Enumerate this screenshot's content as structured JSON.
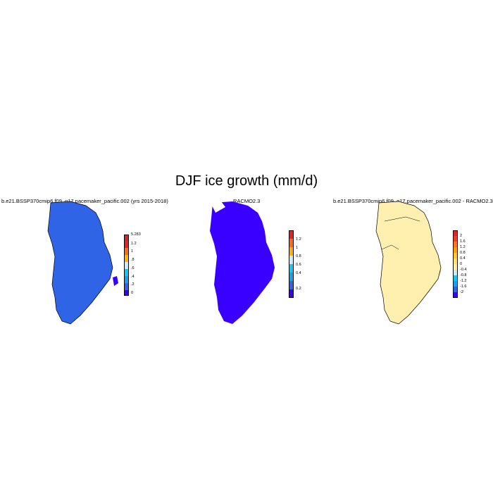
{
  "title": "DJF ice growth (mm/d)",
  "chart_data": [
    {
      "type": "heatmap",
      "title": "b.e21.BSSP370cmip6.f09_g17.pacemaker_pacific.002 (yrs 2015-2018)",
      "colorbar": {
        "colors": [
          "#3a00ff",
          "#2f64e6",
          "#1aa0f0",
          "#12c8f8",
          "#c8ecf8",
          "#ffb000",
          "#ff6c10",
          "#e82020",
          "#c82828"
        ],
        "tick_labels": [
          "0",
          ".2",
          ".4",
          ".6",
          ".8",
          "1",
          "1.2",
          "5.283"
        ]
      }
    },
    {
      "type": "heatmap",
      "title": "RACMO2.3",
      "colorbar": {
        "colors": [
          "#3a00ff",
          "#2f64e6",
          "#1aa0f0",
          "#12c8f8",
          "#c8ecf8",
          "#ffb000",
          "#ff6c10",
          "#e82020"
        ],
        "tick_labels": [
          "0.2",
          "0.4",
          "0.6",
          "0.8",
          "1",
          "1.2"
        ]
      }
    },
    {
      "type": "heatmap",
      "title": "b.e21.BSSP370cmip6.f09_g17.pacemaker_pacific.002 - RACMO2.3",
      "colorbar": {
        "colors": [
          "#3a00ff",
          "#2f64e6",
          "#1aa0f0",
          "#12c8f8",
          "#c8ecf8",
          "#fff0b0",
          "#ffe070",
          "#ffc830",
          "#ffa000",
          "#ff7818",
          "#f04020",
          "#d82828"
        ],
        "tick_labels": [
          "-2",
          "-1.6",
          "-1.2",
          "-0.8",
          "-0.4",
          "0",
          "0.4",
          "0.8",
          "1.2",
          "1.6",
          "2"
        ]
      }
    }
  ]
}
